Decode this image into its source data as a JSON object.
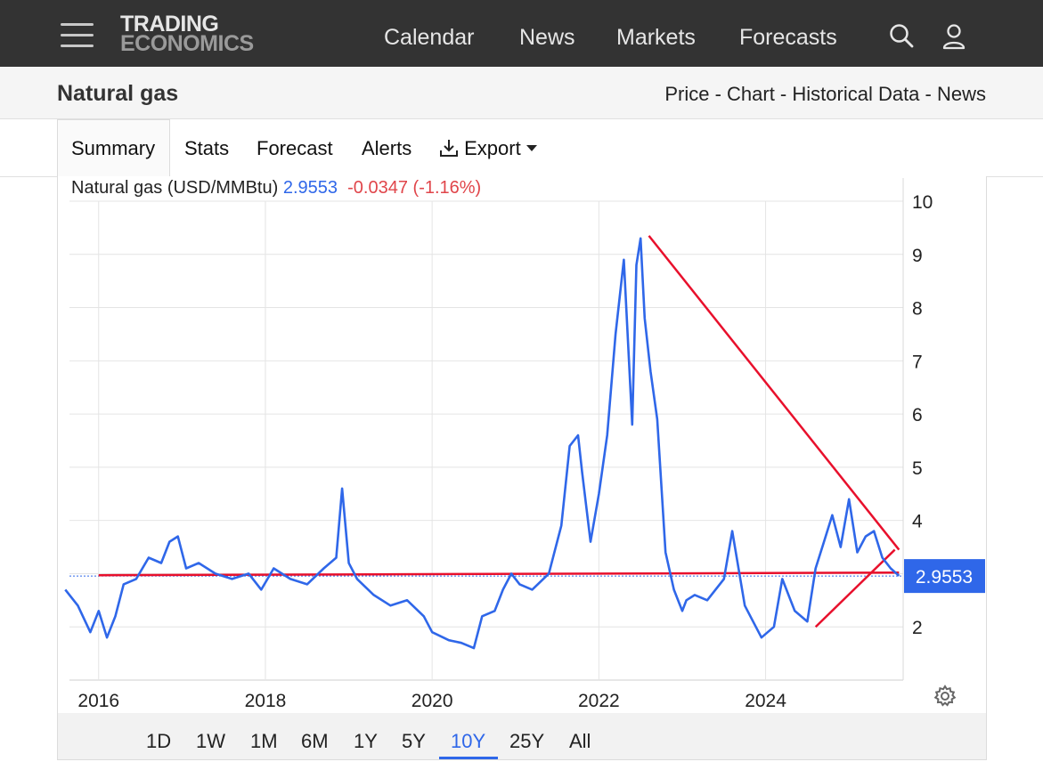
{
  "header": {
    "logo_line1": "TRADING",
    "logo_line2": "ECONOMICS",
    "nav": [
      "Calendar",
      "News",
      "Markets",
      "Forecasts"
    ],
    "icons": [
      "menu-icon",
      "search-icon",
      "user-icon"
    ]
  },
  "page": {
    "title": "Natural gas",
    "crumbs": [
      "Price",
      "Chart",
      "Historical Data",
      "News"
    ],
    "crumb_sep": " - "
  },
  "tabs": [
    "Summary",
    "Stats",
    "Forecast",
    "Alerts",
    "Export"
  ],
  "export_icon": "download-icon",
  "legend": {
    "name": "Natural gas (USD/MMBtu)",
    "value": "2.9553",
    "change": "-0.0347 (-1.16%)"
  },
  "last_value_badge": "2.9553",
  "ranges": [
    "1D",
    "1W",
    "1M",
    "6M",
    "1Y",
    "5Y",
    "10Y",
    "25Y",
    "All"
  ],
  "active_range": "10Y",
  "settings_icon": "gear-icon",
  "colors": {
    "series": "#2f67e9",
    "trendlines": "#e8102c",
    "change_negative": "#e0454a",
    "topbar": "#333333",
    "badge": "#2f67e9"
  },
  "chart_data": {
    "type": "line",
    "series": [
      {
        "name": "Natural gas (USD/MMBtu)",
        "x": [
          2015.6,
          2015.75,
          2015.9,
          2016.0,
          2016.1,
          2016.2,
          2016.3,
          2016.45,
          2016.6,
          2016.75,
          2016.85,
          2016.95,
          2017.05,
          2017.2,
          2017.4,
          2017.6,
          2017.8,
          2017.95,
          2018.1,
          2018.3,
          2018.5,
          2018.7,
          2018.85,
          2018.92,
          2019.0,
          2019.1,
          2019.3,
          2019.5,
          2019.7,
          2019.9,
          2020.0,
          2020.2,
          2020.35,
          2020.5,
          2020.6,
          2020.75,
          2020.85,
          2020.95,
          2021.05,
          2021.2,
          2021.4,
          2021.55,
          2021.65,
          2021.75,
          2021.8,
          2021.9,
          2022.0,
          2022.1,
          2022.2,
          2022.3,
          2022.4,
          2022.45,
          2022.5,
          2022.55,
          2022.62,
          2022.7,
          2022.8,
          2022.9,
          2023.0,
          2023.05,
          2023.15,
          2023.3,
          2023.5,
          2023.6,
          2023.75,
          2023.85,
          2023.95,
          2024.1,
          2024.2,
          2024.35,
          2024.5,
          2024.6,
          2024.7,
          2024.8,
          2024.9,
          2025.0,
          2025.1,
          2025.2,
          2025.3,
          2025.4,
          2025.5,
          2025.6
        ],
        "values": [
          2.7,
          2.4,
          1.9,
          2.3,
          1.8,
          2.2,
          2.8,
          2.9,
          3.3,
          3.2,
          3.6,
          3.7,
          3.1,
          3.2,
          3.0,
          2.9,
          3.0,
          2.7,
          3.1,
          2.9,
          2.8,
          3.1,
          3.3,
          4.6,
          3.2,
          2.9,
          2.6,
          2.4,
          2.5,
          2.2,
          1.9,
          1.75,
          1.7,
          1.6,
          2.2,
          2.3,
          2.7,
          3.0,
          2.8,
          2.7,
          3.0,
          3.9,
          5.4,
          5.6,
          4.9,
          3.6,
          4.5,
          5.6,
          7.5,
          8.9,
          5.8,
          8.8,
          9.3,
          7.8,
          6.8,
          5.9,
          3.4,
          2.7,
          2.3,
          2.5,
          2.6,
          2.5,
          2.9,
          3.8,
          2.4,
          2.1,
          1.8,
          2.0,
          2.9,
          2.3,
          2.1,
          3.1,
          3.6,
          4.1,
          3.5,
          4.4,
          3.4,
          3.7,
          3.8,
          3.3,
          3.1,
          2.96
        ]
      }
    ],
    "trendlines": [
      {
        "x": [
          2016.0,
          2025.6
        ],
        "y": [
          2.97,
          3.02
        ]
      },
      {
        "x": [
          2022.6,
          2025.6
        ],
        "y": [
          9.35,
          3.45
        ]
      },
      {
        "x": [
          2024.6,
          2025.55
        ],
        "y": [
          2.0,
          3.45
        ]
      }
    ],
    "last_value": 2.9553,
    "xlim": [
      2015.65,
      2025.65
    ],
    "ylim": [
      1,
      10
    ],
    "x_ticks": [
      "2016",
      "2018",
      "2020",
      "2022",
      "2024"
    ],
    "y_ticks": [
      2,
      3,
      4,
      5,
      6,
      7,
      8,
      9,
      10
    ],
    "y_tick_labels": [
      "2",
      "",
      "4",
      "5",
      "6",
      "7",
      "8",
      "9",
      "10"
    ],
    "grid": true,
    "y_axis_side": "right",
    "title": "",
    "xlabel": "",
    "ylabel": ""
  }
}
